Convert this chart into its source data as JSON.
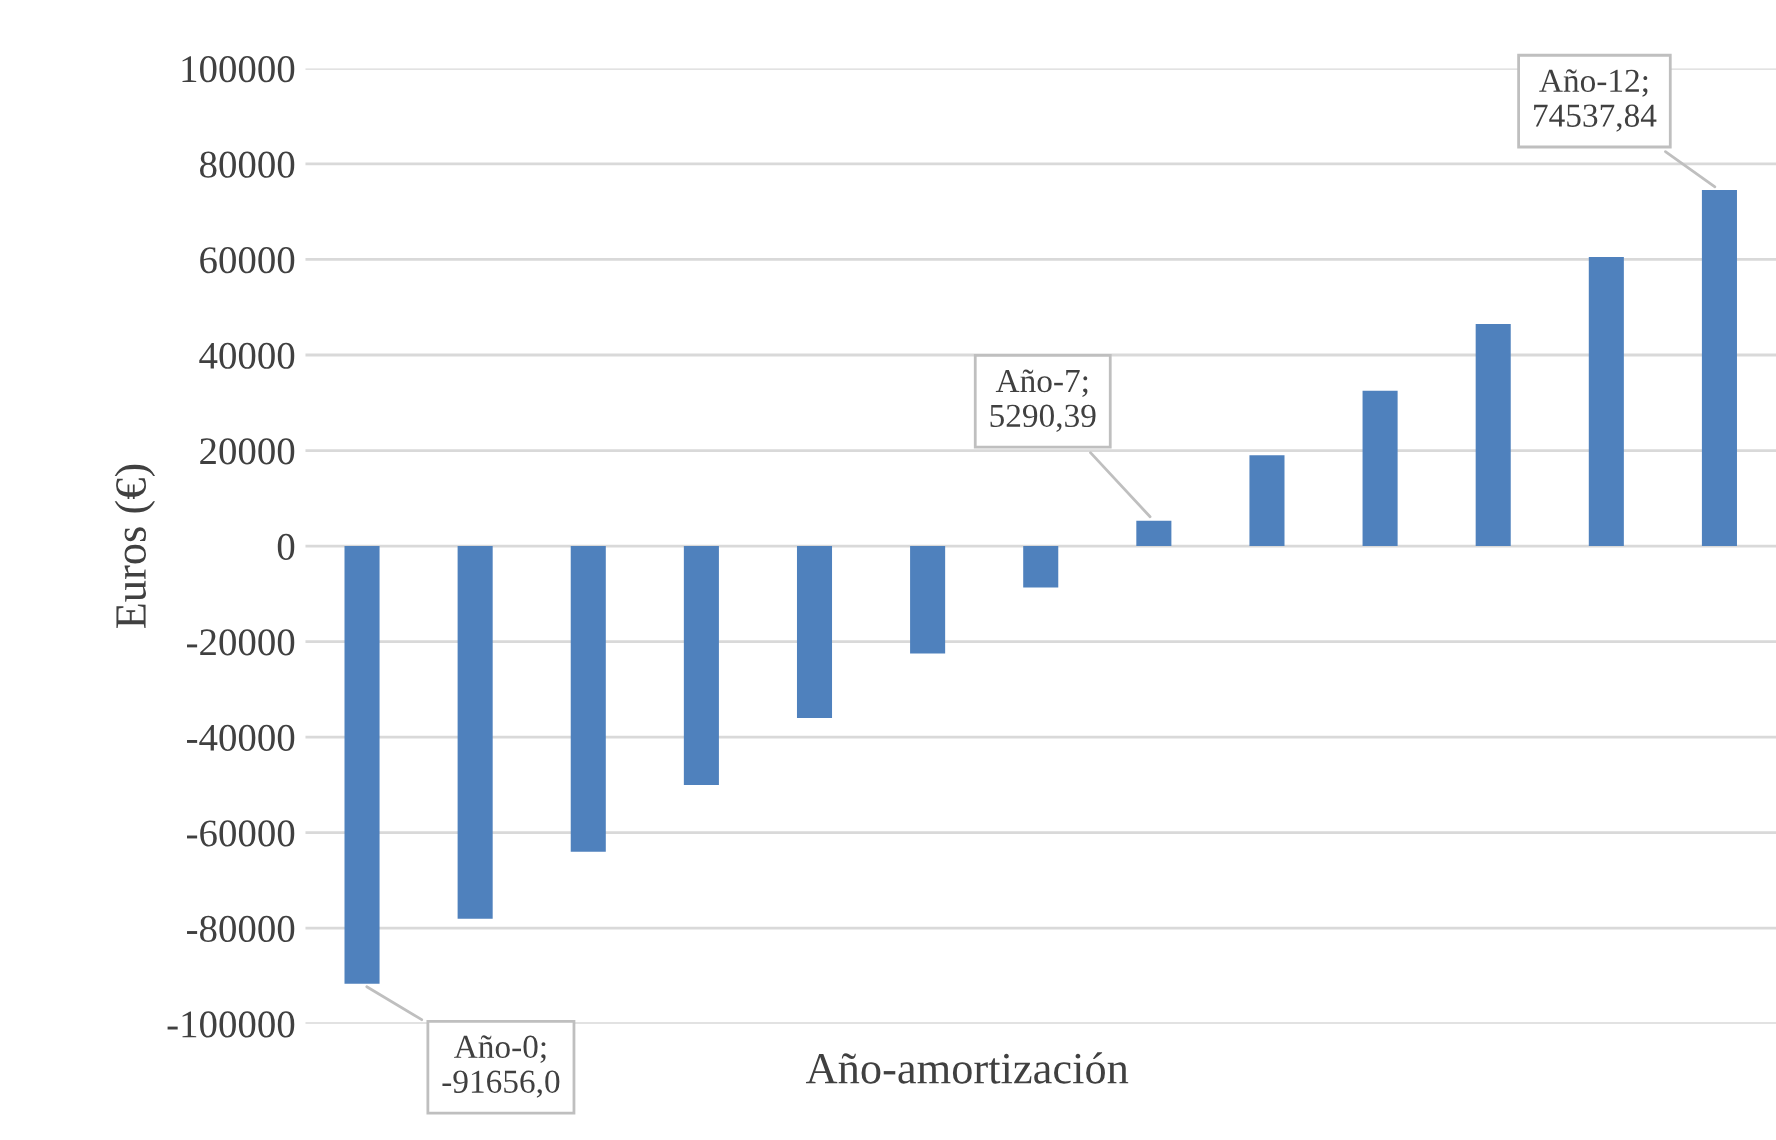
{
  "chart_data": {
    "type": "bar",
    "ylabel": "Euros (€)",
    "xlabel": "Año-amortización",
    "categories": [
      null,
      null,
      null,
      null,
      null,
      null,
      null,
      null,
      null,
      null,
      null,
      null,
      null
    ],
    "values": [
      -91656.0,
      -78000,
      -64000,
      -50000,
      -36000,
      -22500,
      -8700,
      5290.39,
      19000,
      32500,
      46500,
      60500,
      74537.84
    ],
    "color": "#4f81bd",
    "ylim": [
      -100000,
      100000
    ],
    "yticks": [
      -100000,
      -80000,
      -60000,
      -40000,
      -20000,
      0,
      20000,
      40000,
      60000,
      80000,
      100000
    ],
    "grid": "y",
    "value_labels": [
      "Año-0; -91656,0",
      null,
      null,
      null,
      null,
      null,
      null,
      "Año-7; 5290,39",
      null,
      null,
      null,
      null,
      "Año-12; 74537,84"
    ]
  }
}
